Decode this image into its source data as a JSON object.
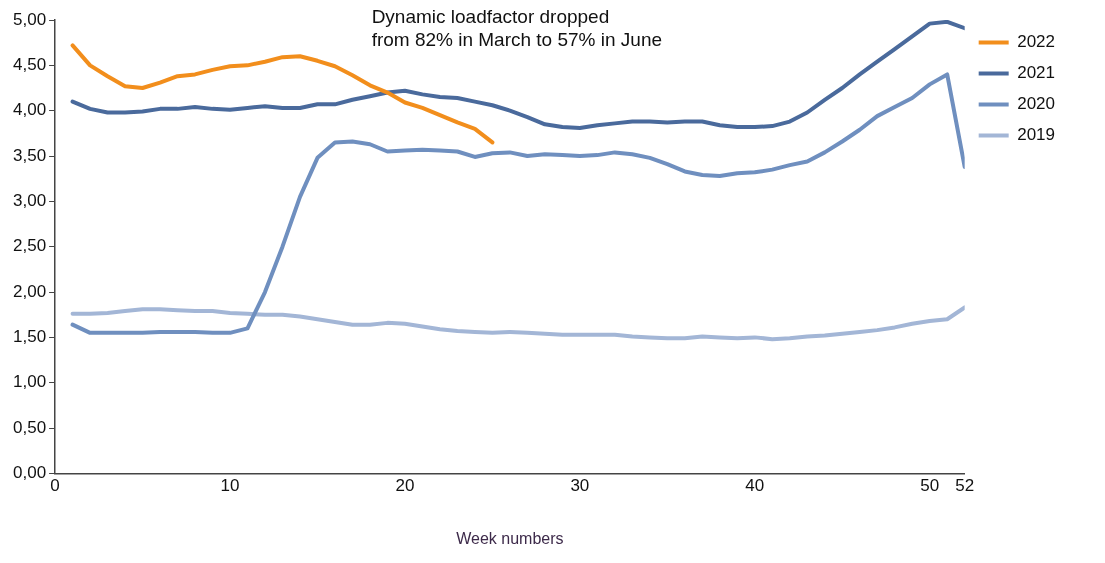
{
  "chart_data": {
    "type": "line",
    "xlabel": "Week numbers",
    "annotations": [
      "Dynamic loadfactor dropped\nfrom 82% in March to 57% in June"
    ],
    "x": [
      1,
      2,
      3,
      4,
      5,
      6,
      7,
      8,
      9,
      10,
      11,
      12,
      13,
      14,
      15,
      16,
      17,
      18,
      19,
      20,
      21,
      22,
      23,
      24,
      25,
      26,
      27,
      28,
      29,
      30,
      31,
      32,
      33,
      34,
      35,
      36,
      37,
      38,
      39,
      40,
      41,
      42,
      43,
      44,
      45,
      46,
      47,
      48,
      49,
      50,
      51,
      52
    ],
    "series": [
      {
        "name": "2022",
        "color": "#f28e1c",
        "x": [
          1,
          2,
          3,
          4,
          5,
          6,
          7,
          8,
          9,
          10,
          11,
          12,
          13,
          14,
          15,
          16,
          17,
          18,
          19,
          20,
          21,
          22,
          23,
          24,
          25
        ],
        "values": [
          4.72,
          4.5,
          4.38,
          4.27,
          4.25,
          4.31,
          4.38,
          4.4,
          4.45,
          4.49,
          4.5,
          4.54,
          4.59,
          4.6,
          4.55,
          4.49,
          4.39,
          4.28,
          4.2,
          4.09,
          4.03,
          3.95,
          3.87,
          3.8,
          3.65
        ]
      },
      {
        "name": "2021",
        "color": "#4a6a9c",
        "values": [
          4.1,
          4.02,
          3.98,
          3.98,
          3.99,
          4.02,
          4.02,
          4.04,
          4.02,
          4.01,
          4.03,
          4.05,
          4.03,
          4.03,
          4.07,
          4.07,
          4.12,
          4.16,
          4.2,
          4.22,
          4.18,
          4.15,
          4.14,
          4.1,
          4.06,
          4.0,
          3.93,
          3.85,
          3.82,
          3.81,
          3.84,
          3.86,
          3.88,
          3.88,
          3.87,
          3.88,
          3.88,
          3.84,
          3.82,
          3.82,
          3.83,
          3.88,
          3.98,
          4.12,
          4.25,
          4.4,
          4.54,
          4.68,
          4.82,
          4.96,
          4.98,
          4.91
        ]
      },
      {
        "name": "2020",
        "color": "#6f8fbf",
        "values": [
          1.64,
          1.55,
          1.55,
          1.55,
          1.55,
          1.56,
          1.56,
          1.56,
          1.55,
          1.55,
          1.6,
          2.0,
          2.5,
          3.05,
          3.48,
          3.65,
          3.66,
          3.63,
          3.55,
          3.56,
          3.57,
          3.56,
          3.55,
          3.49,
          3.53,
          3.54,
          3.5,
          3.52,
          3.51,
          3.5,
          3.51,
          3.54,
          3.52,
          3.48,
          3.41,
          3.33,
          3.29,
          3.28,
          3.31,
          3.32,
          3.35,
          3.4,
          3.44,
          3.54,
          3.66,
          3.79,
          3.94,
          4.04,
          4.14,
          4.29,
          4.4,
          3.38
        ]
      },
      {
        "name": "2019",
        "color": "#a3b6d6",
        "values": [
          1.76,
          1.76,
          1.77,
          1.79,
          1.81,
          1.81,
          1.8,
          1.79,
          1.79,
          1.77,
          1.76,
          1.75,
          1.75,
          1.73,
          1.7,
          1.67,
          1.64,
          1.64,
          1.66,
          1.65,
          1.62,
          1.59,
          1.57,
          1.56,
          1.55,
          1.56,
          1.55,
          1.54,
          1.53,
          1.53,
          1.53,
          1.53,
          1.51,
          1.5,
          1.49,
          1.49,
          1.51,
          1.5,
          1.49,
          1.5,
          1.48,
          1.49,
          1.51,
          1.52,
          1.54,
          1.56,
          1.58,
          1.61,
          1.65,
          1.68,
          1.7,
          1.83
        ]
      }
    ],
    "xlim": [
      0,
      52
    ],
    "xticks": [
      0,
      10,
      20,
      30,
      40,
      50,
      52
    ],
    "ylim": [
      0,
      5
    ],
    "yticks": [
      {
        "value": 0,
        "label": "0,00"
      },
      {
        "value": 0.5,
        "label": "0,50"
      },
      {
        "value": 1,
        "label": "1,00"
      },
      {
        "value": 1.5,
        "label": "1,50"
      },
      {
        "value": 2,
        "label": "2,00"
      },
      {
        "value": 2.5,
        "label": "2,50"
      },
      {
        "value": 3,
        "label": "3,00"
      },
      {
        "value": 3.5,
        "label": "3,50"
      },
      {
        "value": 4,
        "label": "4,00"
      },
      {
        "value": 4.5,
        "label": "4,50"
      },
      {
        "value": 5,
        "label": "5,00"
      }
    ],
    "grid": false,
    "legend": "top right",
    "marker": "none",
    "line_style": "solid"
  }
}
